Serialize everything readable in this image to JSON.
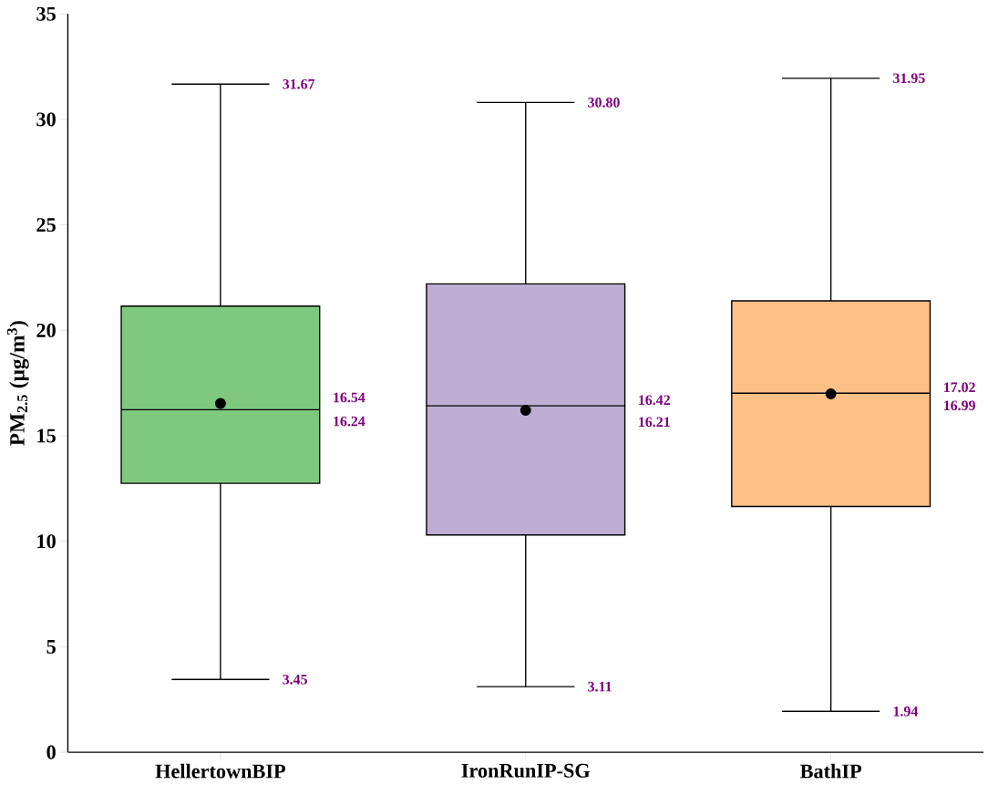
{
  "chart_data": {
    "type": "box",
    "ylabel": "PM$_{2.5}$ (μg/m$^{3}$)",
    "categories": [
      "HellertownBIP",
      "IronRunIP-SG",
      "BathIP"
    ],
    "colors": [
      "#7fc97f",
      "#beaed4",
      "#fdc086"
    ],
    "boxes": [
      {
        "low": 3.45,
        "q1": 12.75,
        "median": 16.24,
        "q3": 21.15,
        "high": 31.67,
        "mean": 16.54
      },
      {
        "low": 3.11,
        "q1": 10.3,
        "median": 16.42,
        "q3": 22.2,
        "high": 30.8,
        "mean": 16.21
      },
      {
        "low": 1.94,
        "q1": 11.65,
        "median": 17.02,
        "q3": 21.4,
        "high": 31.95,
        "mean": 16.99
      }
    ],
    "ylim": [
      0,
      35
    ],
    "yticks": [
      0,
      5,
      10,
      15,
      20,
      25,
      30,
      35
    ],
    "annotations": [
      "31.67",
      "16.54",
      "16.24",
      "3.45",
      "30.80",
      "16.42",
      "16.21",
      "3.11",
      "31.95",
      "17.02",
      "16.99",
      "1.94"
    ],
    "grid": false
  }
}
